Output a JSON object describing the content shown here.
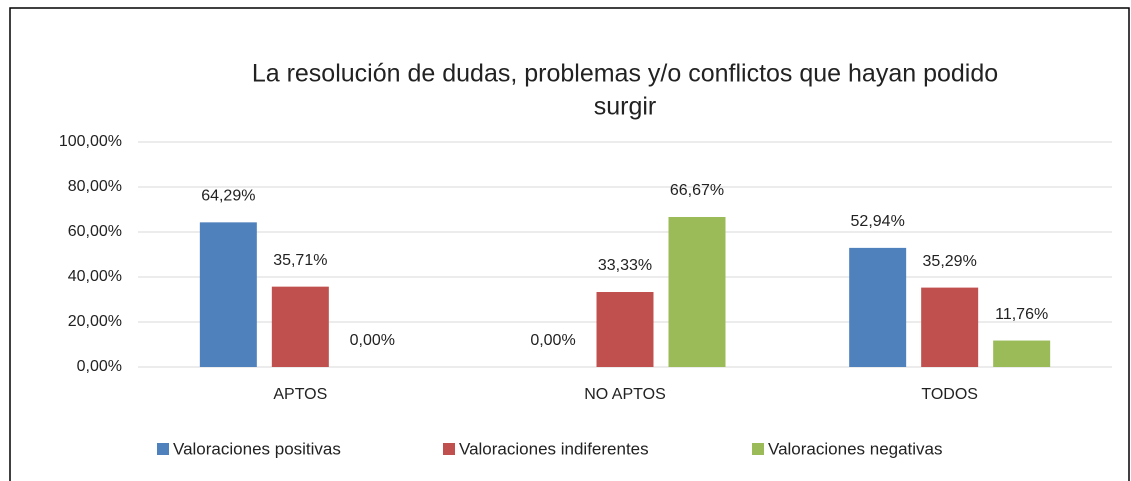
{
  "chart_data": {
    "type": "bar",
    "title": [
      "La resolución de dudas, problemas y/o conflictos que hayan podido",
      "surgir"
    ],
    "categories": [
      "APTOS",
      "NO APTOS",
      "TODOS"
    ],
    "series": [
      {
        "name": "Valoraciones positivas",
        "color": "#4f81bd",
        "values": [
          64.29,
          0,
          52.94
        ],
        "value_labels": [
          "64,29%",
          "0,00%",
          "52,94%"
        ]
      },
      {
        "name": "Valoraciones indiferentes",
        "color": "#c0504d",
        "values": [
          35.71,
          33.33,
          35.29
        ],
        "value_labels": [
          "35,71%",
          "33,33%",
          "35,29%"
        ]
      },
      {
        "name": "Valoraciones negativas",
        "color": "#9bbb59",
        "values": [
          0,
          66.67,
          11.76
        ],
        "value_labels": [
          "0,00%",
          "66,67%",
          "11,76%"
        ]
      }
    ],
    "ylim": [
      0,
      100
    ],
    "yticks": [
      {
        "value": 0,
        "label": "0,00%"
      },
      {
        "value": 20,
        "label": "20,00%"
      },
      {
        "value": 40,
        "label": "40,00%"
      },
      {
        "value": 60,
        "label": "60,00%"
      },
      {
        "value": 80,
        "label": "80,00%"
      },
      {
        "value": 100,
        "label": "100,00%"
      }
    ],
    "grid": true,
    "legend": "bottom"
  }
}
